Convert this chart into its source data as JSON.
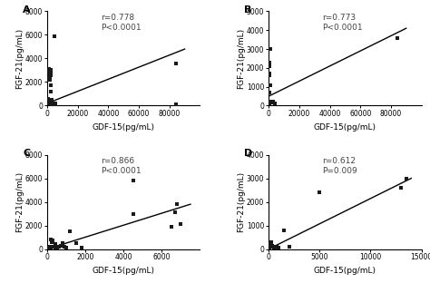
{
  "panels": [
    {
      "label": "A",
      "r_text": "r=0.778",
      "p_text": "P<0.0001",
      "xlim": [
        0,
        100000
      ],
      "ylim": [
        0,
        8000
      ],
      "xticks": [
        0,
        20000,
        40000,
        60000,
        80000
      ],
      "yticks": [
        0,
        2000,
        4000,
        6000,
        8000
      ],
      "xtick_labels": [
        "0",
        "20000",
        "40000",
        "60000",
        "80000"
      ],
      "ytick_labels": [
        "0",
        "2000",
        "4000",
        "6000",
        "8000"
      ],
      "xlabel": "GDF-15(pg/mL)",
      "ylabel": "FGF-21(pg/mL)",
      "scatter_x": [
        400,
        500,
        500,
        600,
        700,
        800,
        900,
        1000,
        1200,
        1500,
        1500,
        2000,
        2000,
        2200,
        2500,
        2500,
        2800,
        3000,
        3000,
        3500,
        3500,
        4000,
        4500,
        5000,
        5500,
        84000,
        84500
      ],
      "scatter_y": [
        200,
        400,
        600,
        350,
        500,
        2400,
        2800,
        2200,
        3100,
        2200,
        2500,
        2800,
        2600,
        3000,
        1200,
        1700,
        300,
        500,
        100,
        200,
        100,
        200,
        5900,
        100,
        200,
        3600,
        100
      ],
      "line_x": [
        0,
        90000
      ],
      "line_y": [
        200,
        4800
      ]
    },
    {
      "label": "B",
      "r_text": "r=0.773",
      "p_text": "P<0.0001",
      "xlim": [
        0,
        100000
      ],
      "ylim": [
        0,
        5000
      ],
      "xticks": [
        0,
        20000,
        40000,
        60000,
        80000
      ],
      "yticks": [
        0,
        1000,
        2000,
        3000,
        4000,
        5000
      ],
      "xtick_labels": [
        "0",
        "20000",
        "40000",
        "60000",
        "80000"
      ],
      "ytick_labels": [
        "0",
        "1000",
        "2000",
        "3000",
        "4000",
        "5000"
      ],
      "xlabel": "GDF-15(pg/mL)",
      "ylabel": "FGF-21(pg/mL)",
      "scatter_x": [
        200,
        200,
        300,
        400,
        500,
        500,
        500,
        600,
        800,
        1000,
        1500,
        3000,
        4000,
        84000
      ],
      "scatter_y": [
        100,
        200,
        700,
        2200,
        2100,
        1700,
        1600,
        2300,
        3000,
        1100,
        150,
        200,
        100,
        3600
      ],
      "line_x": [
        0,
        90000
      ],
      "line_y": [
        500,
        4100
      ]
    },
    {
      "label": "C",
      "r_text": "r=0.866",
      "p_text": "P<0.0001",
      "xlim": [
        0,
        8000
      ],
      "ylim": [
        0,
        8000
      ],
      "xticks": [
        0,
        2000,
        4000,
        6000
      ],
      "yticks": [
        0,
        2000,
        4000,
        6000,
        8000
      ],
      "xtick_labels": [
        "0",
        "2000",
        "4000",
        "6000"
      ],
      "ytick_labels": [
        "0",
        "2000",
        "4000",
        "6000",
        "8000"
      ],
      "xlabel": "GDF-15(pg/mL)",
      "ylabel": "FGF-21(pg/mL)",
      "scatter_x": [
        100,
        150,
        200,
        200,
        250,
        300,
        300,
        400,
        400,
        500,
        600,
        700,
        800,
        900,
        1000,
        1200,
        1500,
        1800,
        4500,
        4500,
        6500,
        6700,
        6800,
        7000
      ],
      "scatter_y": [
        100,
        200,
        100,
        800,
        600,
        700,
        200,
        400,
        100,
        100,
        200,
        300,
        500,
        200,
        100,
        1500,
        500,
        100,
        5800,
        3000,
        1900,
        3100,
        3800,
        2100
      ],
      "line_x": [
        0,
        7500
      ],
      "line_y": [
        0,
        3800
      ]
    },
    {
      "label": "D",
      "r_text": "r=0.612",
      "p_text": "P=0.009",
      "xlim": [
        0,
        15000
      ],
      "ylim": [
        0,
        4000
      ],
      "xticks": [
        0,
        5000,
        10000,
        15000
      ],
      "yticks": [
        0,
        1000,
        2000,
        3000,
        4000
      ],
      "xtick_labels": [
        "0",
        "5000",
        "10000",
        "15000"
      ],
      "ytick_labels": [
        "0",
        "1000",
        "2000",
        "3000",
        "4000"
      ],
      "xlabel": "GDF-15(pg/mL)",
      "ylabel": "FGF-21(pg/mL)",
      "scatter_x": [
        100,
        200,
        200,
        250,
        300,
        350,
        400,
        500,
        600,
        700,
        800,
        900,
        1000,
        1500,
        2000,
        5000,
        13000,
        13500
      ],
      "scatter_y": [
        50,
        100,
        200,
        300,
        100,
        150,
        100,
        50,
        100,
        50,
        100,
        50,
        50,
        800,
        100,
        2400,
        2600,
        3000
      ],
      "line_x": [
        0,
        14000
      ],
      "line_y": [
        0,
        3000
      ]
    }
  ],
  "background_color": "#ffffff",
  "scatter_color": "#1a1a1a",
  "line_color": "#000000",
  "label_fontsize": 8,
  "annot_fontsize": 6.5,
  "tick_fontsize": 5.5,
  "axis_label_fontsize": 6.5
}
